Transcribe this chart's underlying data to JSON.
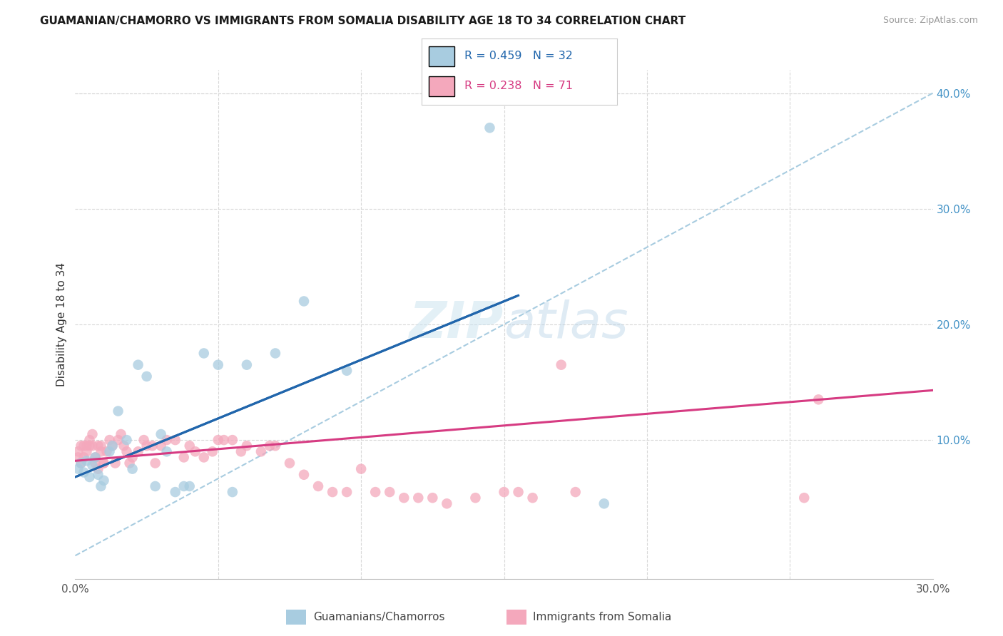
{
  "title": "GUAMANIAN/CHAMORRO VS IMMIGRANTS FROM SOMALIA DISABILITY AGE 18 TO 34 CORRELATION CHART",
  "source": "Source: ZipAtlas.com",
  "ylabel": "Disability Age 18 to 34",
  "xlim": [
    0.0,
    0.3
  ],
  "ylim": [
    -0.02,
    0.42
  ],
  "y_ticks_right": [
    0.0,
    0.1,
    0.2,
    0.3,
    0.4
  ],
  "y_tick_labels_right": [
    "",
    "10.0%",
    "20.0%",
    "30.0%",
    "40.0%"
  ],
  "legend1_R": "0.459",
  "legend1_N": "32",
  "legend2_R": "0.238",
  "legend2_N": "71",
  "blue_scatter_color": "#a8cce0",
  "pink_scatter_color": "#f4a8bc",
  "blue_line_color": "#2166ac",
  "pink_line_color": "#d63b82",
  "dashed_line_color": "#a8cce0",
  "watermark_color": "#cce4f0",
  "legend_label1": "Guamanians/Chamorros",
  "legend_label2": "Immigrants from Somalia",
  "guam_x": [
    0.001,
    0.002,
    0.003,
    0.004,
    0.005,
    0.006,
    0.007,
    0.008,
    0.009,
    0.01,
    0.012,
    0.013,
    0.015,
    0.018,
    0.02,
    0.022,
    0.025,
    0.028,
    0.03,
    0.032,
    0.035,
    0.038,
    0.04,
    0.045,
    0.05,
    0.055,
    0.06,
    0.07,
    0.08,
    0.095,
    0.145,
    0.185
  ],
  "guam_y": [
    0.075,
    0.08,
    0.072,
    0.082,
    0.068,
    0.078,
    0.085,
    0.07,
    0.06,
    0.065,
    0.09,
    0.095,
    0.125,
    0.1,
    0.075,
    0.165,
    0.155,
    0.06,
    0.105,
    0.09,
    0.055,
    0.06,
    0.06,
    0.175,
    0.165,
    0.055,
    0.165,
    0.175,
    0.22,
    0.16,
    0.37,
    0.045
  ],
  "somalia_x": [
    0.001,
    0.001,
    0.002,
    0.002,
    0.003,
    0.003,
    0.004,
    0.004,
    0.005,
    0.005,
    0.006,
    0.006,
    0.007,
    0.007,
    0.008,
    0.008,
    0.009,
    0.009,
    0.01,
    0.01,
    0.011,
    0.012,
    0.013,
    0.014,
    0.015,
    0.016,
    0.017,
    0.018,
    0.019,
    0.02,
    0.022,
    0.024,
    0.025,
    0.027,
    0.028,
    0.03,
    0.032,
    0.035,
    0.038,
    0.04,
    0.042,
    0.045,
    0.048,
    0.05,
    0.052,
    0.055,
    0.058,
    0.06,
    0.065,
    0.068,
    0.07,
    0.075,
    0.08,
    0.085,
    0.09,
    0.095,
    0.1,
    0.105,
    0.11,
    0.115,
    0.12,
    0.125,
    0.13,
    0.14,
    0.15,
    0.155,
    0.16,
    0.17,
    0.175,
    0.255,
    0.26
  ],
  "somalia_y": [
    0.09,
    0.085,
    0.095,
    0.08,
    0.085,
    0.095,
    0.09,
    0.095,
    0.095,
    0.1,
    0.105,
    0.095,
    0.085,
    0.08,
    0.075,
    0.095,
    0.095,
    0.09,
    0.08,
    0.08,
    0.09,
    0.1,
    0.095,
    0.08,
    0.1,
    0.105,
    0.095,
    0.09,
    0.08,
    0.085,
    0.09,
    0.1,
    0.095,
    0.095,
    0.08,
    0.095,
    0.1,
    0.1,
    0.085,
    0.095,
    0.09,
    0.085,
    0.09,
    0.1,
    0.1,
    0.1,
    0.09,
    0.095,
    0.09,
    0.095,
    0.095,
    0.08,
    0.07,
    0.06,
    0.055,
    0.055,
    0.075,
    0.055,
    0.055,
    0.05,
    0.05,
    0.05,
    0.045,
    0.05,
    0.055,
    0.055,
    0.05,
    0.165,
    0.055,
    0.05,
    0.135
  ],
  "blue_line_x0": 0.0,
  "blue_line_y0": 0.068,
  "blue_line_x1": 0.155,
  "blue_line_y1": 0.225,
  "pink_line_x0": 0.0,
  "pink_line_y0": 0.082,
  "pink_line_x1": 0.3,
  "pink_line_y1": 0.143,
  "dash_line_x0": 0.0,
  "dash_line_y0": 0.0,
  "dash_line_x1": 0.3,
  "dash_line_y1": 0.4
}
